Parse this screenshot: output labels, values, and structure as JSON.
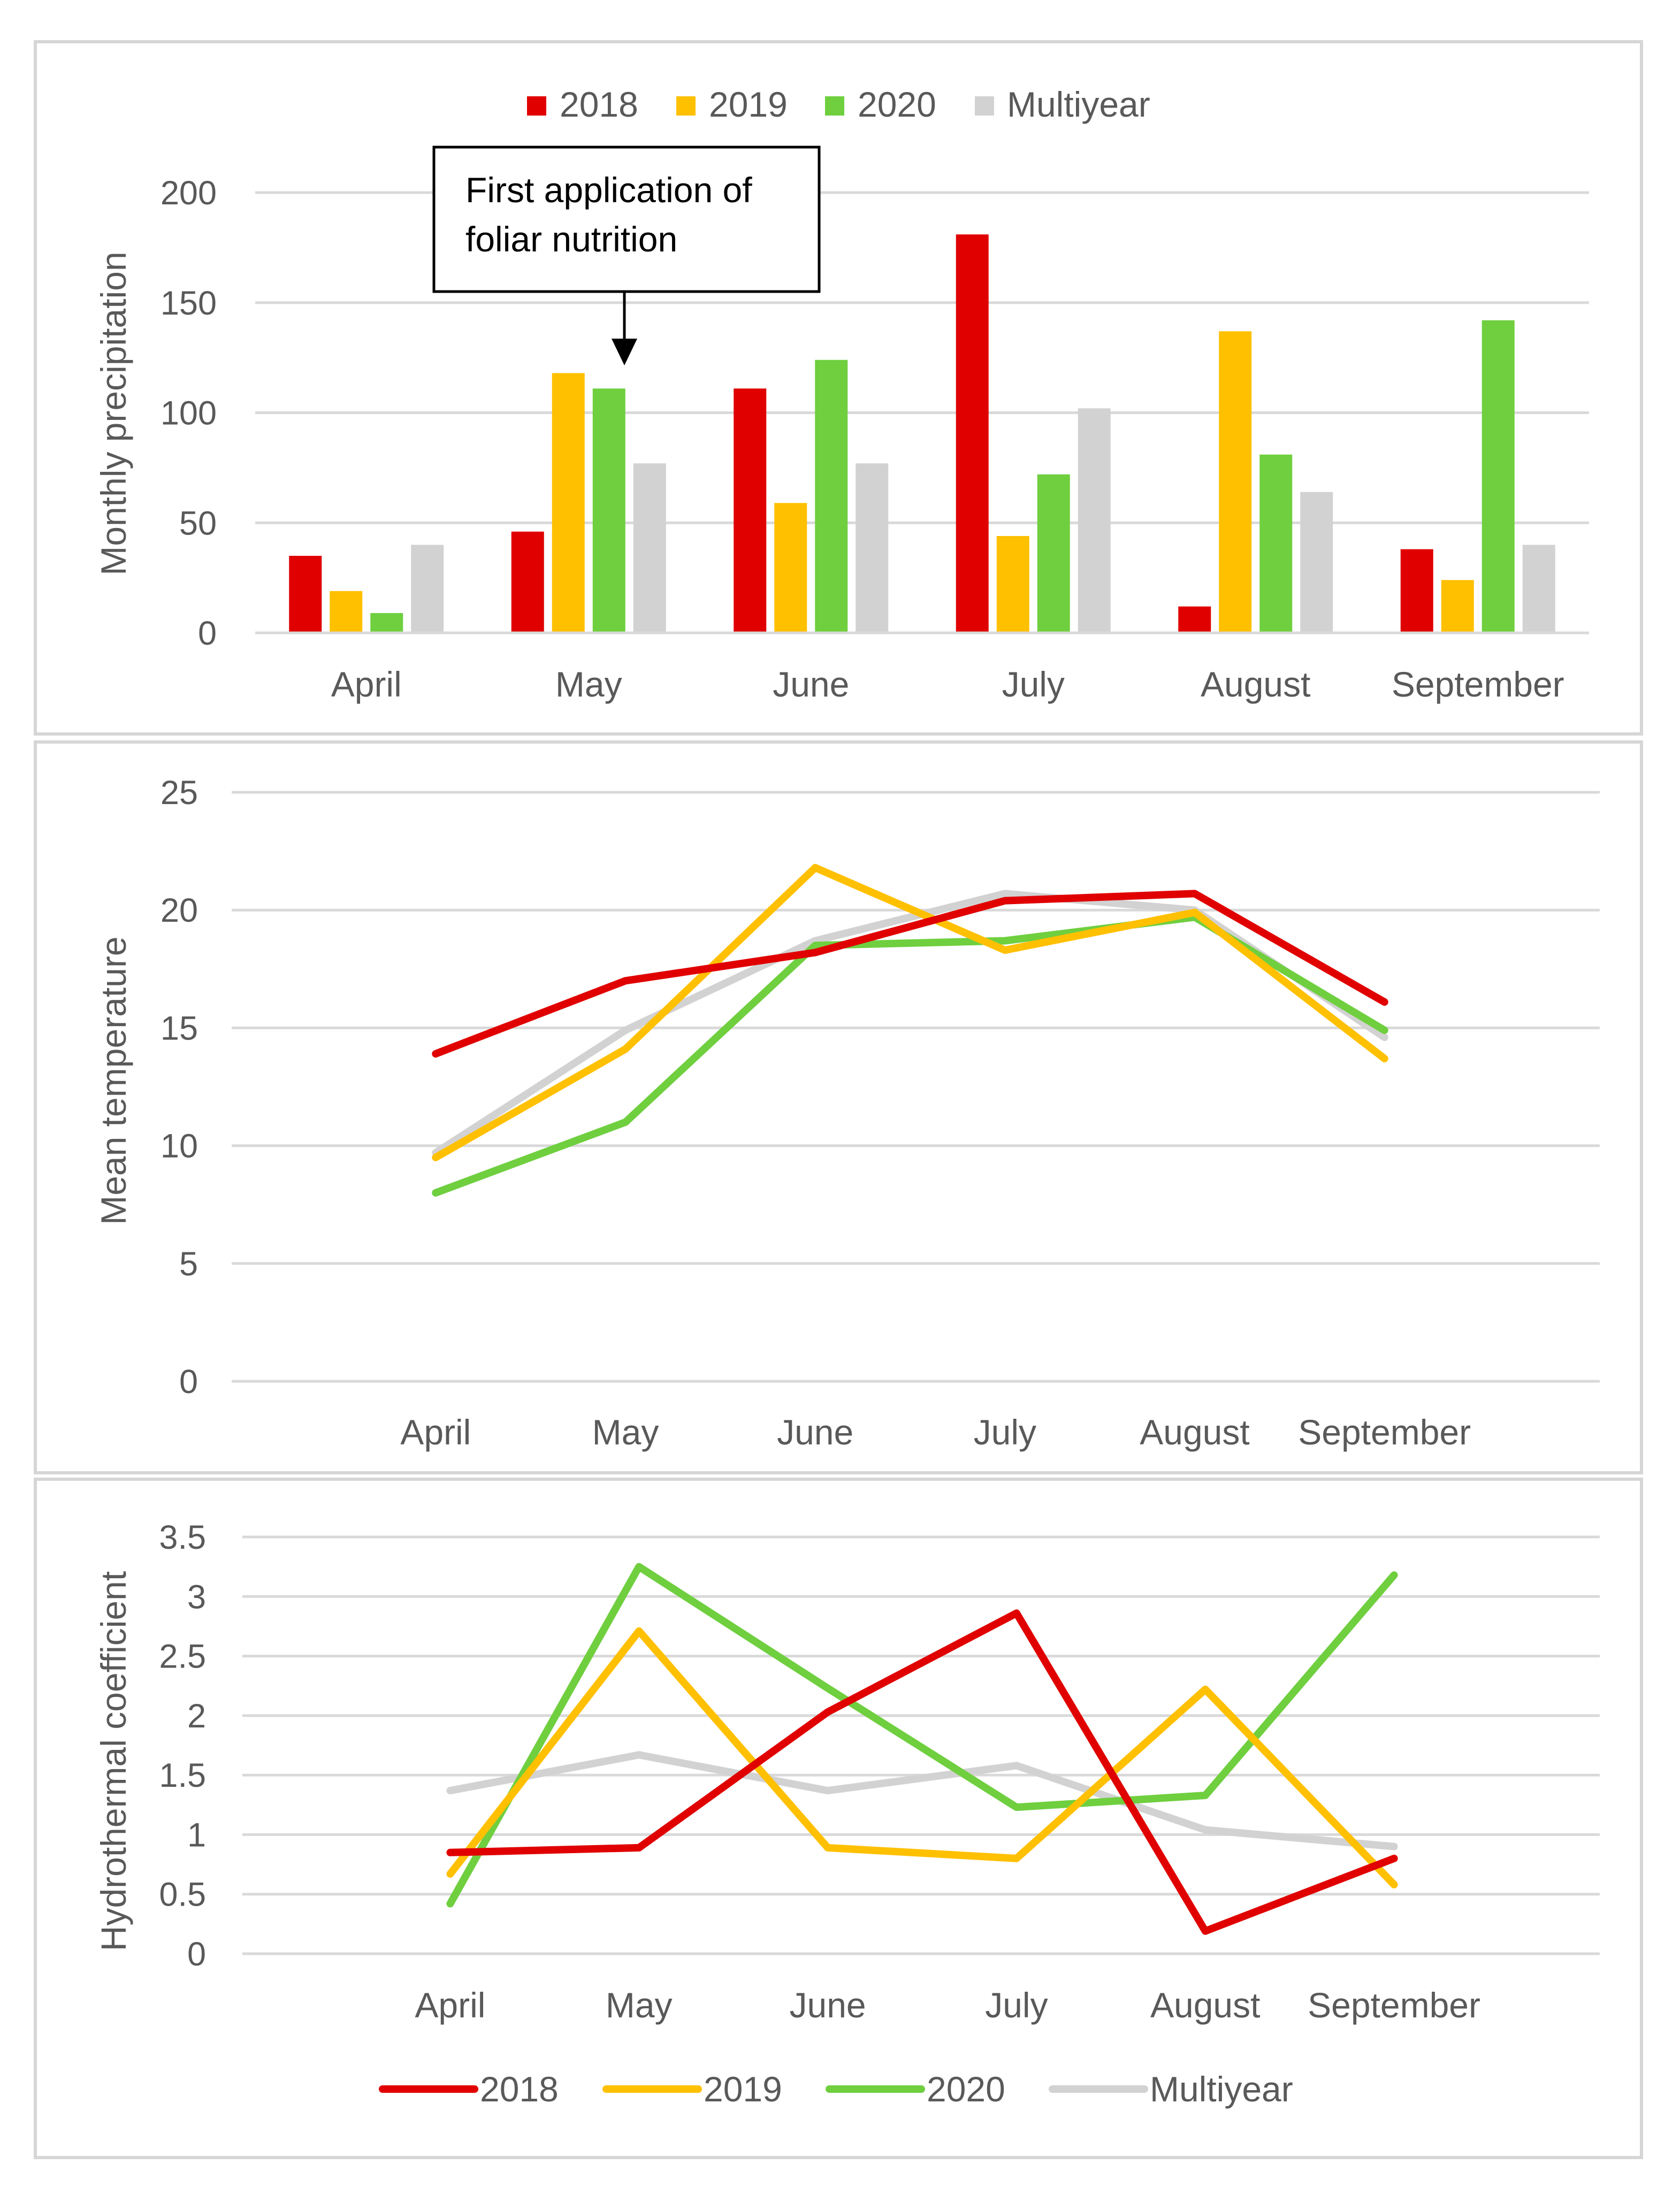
{
  "colors": {
    "s2018": "#e00000",
    "s2019": "#ffc000",
    "s2020": "#6fcf3f",
    "multiyear": "#d3d2d2",
    "grid": "#d9d9d9",
    "text": "#595959",
    "frame": "#d6d6d6"
  },
  "legend_top": [
    "2018",
    "2019",
    "2020",
    "Multiyear"
  ],
  "legend_bottom": [
    "2018",
    "2019",
    "2020",
    "Multiyear"
  ],
  "annotation": {
    "line1": "First application of",
    "line2": "foliar nutrition"
  },
  "chart_data": [
    {
      "id": "precip",
      "type": "bar",
      "ylabel": "Monthly precipitation",
      "ylim": [
        0,
        200
      ],
      "yticks": [
        0,
        50,
        100,
        150,
        200
      ],
      "ytick_labels": [
        "0",
        "50",
        "100",
        "150",
        "200"
      ],
      "categories": [
        "April",
        "May",
        "June",
        "July",
        "August",
        "September"
      ],
      "series": [
        {
          "name": "2018",
          "color_key": "s2018",
          "values": [
            35,
            46,
            111,
            181,
            12,
            38
          ]
        },
        {
          "name": "2019",
          "color_key": "s2019",
          "values": [
            19,
            118,
            59,
            44,
            137,
            24
          ]
        },
        {
          "name": "2020",
          "color_key": "s2020",
          "values": [
            9,
            111,
            124,
            72,
            81,
            142
          ]
        },
        {
          "name": "Multiyear",
          "color_key": "multiyear",
          "values": [
            40,
            77,
            77,
            102,
            64,
            40
          ]
        }
      ]
    },
    {
      "id": "temp",
      "type": "line",
      "ylabel": "Mean temperature",
      "ylim": [
        0,
        25
      ],
      "yticks": [
        0,
        5,
        10,
        15,
        20,
        25
      ],
      "ytick_labels": [
        "0",
        "5",
        "10",
        "15",
        "20",
        "25"
      ],
      "categories": [
        "April",
        "May",
        "June",
        "July",
        "August",
        "September"
      ],
      "series": [
        {
          "name": "2018",
          "color_key": "s2018",
          "values": [
            13.9,
            17.0,
            18.2,
            20.4,
            20.7,
            16.1
          ]
        },
        {
          "name": "2019",
          "color_key": "s2019",
          "values": [
            9.5,
            14.1,
            21.8,
            18.3,
            19.9,
            13.7
          ]
        },
        {
          "name": "2020",
          "color_key": "s2020",
          "values": [
            8.0,
            11.0,
            18.5,
            18.7,
            19.7,
            14.9
          ]
        },
        {
          "name": "Multiyear",
          "color_key": "multiyear",
          "values": [
            9.7,
            14.9,
            18.7,
            20.7,
            20.0,
            14.6
          ]
        }
      ]
    },
    {
      "id": "htc",
      "type": "line",
      "ylabel": "Hydrothermal coefficient",
      "ylim": [
        0,
        3.5
      ],
      "yticks": [
        0,
        0.5,
        1,
        1.5,
        2,
        2.5,
        3,
        3.5
      ],
      "ytick_labels": [
        "0",
        "0.5",
        "1",
        "1.5",
        "2",
        "2.5",
        "3",
        "3.5"
      ],
      "categories": [
        "April",
        "May",
        "June",
        "July",
        "August",
        "September"
      ],
      "series": [
        {
          "name": "2018",
          "color_key": "s2018",
          "values": [
            0.85,
            0.89,
            2.03,
            2.86,
            0.19,
            0.8
          ]
        },
        {
          "name": "2019",
          "color_key": "s2019",
          "values": [
            0.67,
            2.71,
            0.89,
            0.8,
            2.22,
            0.58
          ]
        },
        {
          "name": "2020",
          "color_key": "s2020",
          "values": [
            0.42,
            3.25,
            2.23,
            1.23,
            1.33,
            3.18
          ]
        },
        {
          "name": "Multiyear",
          "color_key": "multiyear",
          "values": [
            1.37,
            1.67,
            1.37,
            1.58,
            1.04,
            0.9
          ]
        }
      ]
    }
  ]
}
